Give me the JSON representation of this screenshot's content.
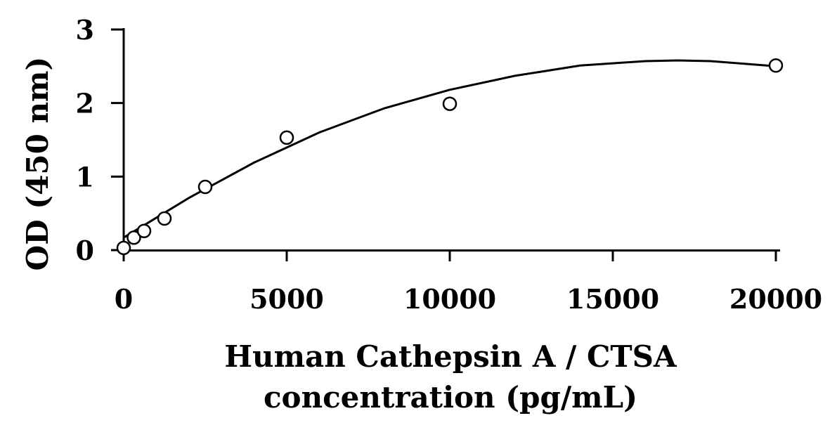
{
  "chart_data": {
    "type": "scatter",
    "title": "",
    "xlabel_lines": [
      "Human Cathepsin A / CTSA",
      "concentration (pg/mL)"
    ],
    "ylabel": "OD (450 nm)",
    "xlim": [
      0,
      20000
    ],
    "ylim": [
      0,
      3
    ],
    "xticks": [
      0,
      5000,
      10000,
      15000,
      20000
    ],
    "yticks": [
      0,
      1,
      2,
      3
    ],
    "grid": false,
    "legend": "none",
    "series": [
      {
        "points": [
          {
            "x": 0,
            "y": 0.03
          },
          {
            "x": 312.5,
            "y": 0.17
          },
          {
            "x": 625,
            "y": 0.26
          },
          {
            "x": 1250,
            "y": 0.43
          },
          {
            "x": 2500,
            "y": 0.86
          },
          {
            "x": 5000,
            "y": 1.53
          },
          {
            "x": 10000,
            "y": 1.99
          },
          {
            "x": 20000,
            "y": 2.51
          }
        ]
      }
    ],
    "fit_curve": {
      "type": "polynomial-2",
      "x": [
        0,
        2000,
        4000,
        6000,
        8000,
        10000,
        12000,
        14000,
        16000,
        17000,
        18000,
        20000
      ],
      "y": [
        0.17,
        0.71,
        1.19,
        1.6,
        1.93,
        2.18,
        2.37,
        2.51,
        2.57,
        2.58,
        2.57,
        2.5
      ]
    },
    "marker": "open-circle",
    "color": "#000000"
  }
}
